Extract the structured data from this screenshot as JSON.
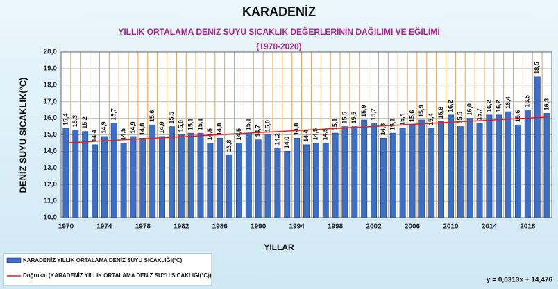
{
  "chart_data": {
    "type": "bar",
    "title": "KARADENİZ",
    "subtitle": [
      "YILLIK ORTALAMA DENİZ SUYU SICAKLIK DEĞERLERİNİN  DAĞILIMI VE EĞİLİMİ",
      "(1970-2020)"
    ],
    "y_label": "DENİZ SUYU  SICAKLIK(°C)",
    "x_label": "YILLAR",
    "categories": [
      "1970",
      null,
      null,
      null,
      "1974",
      null,
      null,
      null,
      "1978",
      null,
      null,
      null,
      "1982",
      null,
      null,
      null,
      "1986",
      null,
      null,
      null,
      "1990",
      null,
      null,
      null,
      "1994",
      null,
      null,
      null,
      "1998",
      null,
      null,
      null,
      "2002",
      null,
      null,
      null,
      "2006",
      null,
      null,
      null,
      "2010",
      null,
      null,
      null,
      "2014",
      null,
      null,
      null,
      "2018",
      null,
      null
    ],
    "series": [
      {
        "name": "KARADENİZ YILLIK ORTALAMA DENİZ SUYU SICAKLIĞI(°C)",
        "color": "#3b6fc8",
        "values": [
          15.4,
          15.3,
          15.2,
          14.4,
          14.9,
          15.7,
          14.5,
          14.9,
          14.8,
          15.6,
          14.9,
          15.5,
          15.0,
          15.1,
          15.1,
          14.5,
          14.8,
          13.8,
          14.5,
          15.1,
          14.7,
          15.0,
          14.2,
          14.0,
          14.8,
          14.4,
          14.5,
          14.5,
          15.1,
          15.5,
          15.5,
          15.9,
          15.7,
          14.8,
          15.1,
          15.4,
          15.6,
          15.9,
          15.4,
          15.8,
          16.2,
          15.5,
          16.0,
          15.7,
          16.2,
          16.2,
          16.4,
          15.6,
          16.5,
          18.5,
          16.3
        ],
        "value_labels": [
          "15,4",
          "15,3",
          "15,2",
          "14,4",
          "14,9",
          "15,7",
          "14,5",
          "14,9",
          "14,8",
          "15,6",
          "14,9",
          "15,5",
          "15,0",
          "15,1",
          "15,1",
          "14,5",
          "14,8",
          "13,8",
          "14,5",
          "15,1",
          "14,7",
          "15,0",
          "14,2",
          "14,0",
          "14,8",
          "14,4",
          "14,5",
          "14,5",
          "15,1",
          "15,5",
          "15,5",
          "15,9",
          "15,7",
          "14,8",
          "15,1",
          "15,4",
          "15,6",
          "15,9",
          "15,4",
          "15,8",
          "16,2",
          "15,5",
          "16,0",
          "15,7",
          "16,2",
          "16,2",
          "16,4",
          "15,6",
          "16,5",
          "18,5",
          "16,3"
        ]
      }
    ],
    "trend": {
      "name": "Doğrusal (KARADENİZ YILLIK ORTALAMA DENİZ SUYU SICAKLIĞI(°C))",
      "color": "#e02020",
      "slope": 0.0313,
      "intercept": 14.476,
      "label": "y = 0,0313x + 14,476"
    },
    "ylim": [
      10,
      20
    ],
    "yticks": [
      {
        "value": 10,
        "label": "10,0"
      },
      {
        "value": 11,
        "label": "11,0"
      },
      {
        "value": 12,
        "label": "12,0"
      },
      {
        "value": 13,
        "label": "13,0"
      },
      {
        "value": 14,
        "label": "14,0"
      },
      {
        "value": 15,
        "label": "15,0"
      },
      {
        "value": 16,
        "label": "16,0"
      },
      {
        "value": 17,
        "label": "17,0"
      },
      {
        "value": 18,
        "label": "18,0"
      },
      {
        "value": 19,
        "label": "19,0"
      },
      {
        "value": 20,
        "label": "20,0"
      }
    ],
    "grid": true
  }
}
